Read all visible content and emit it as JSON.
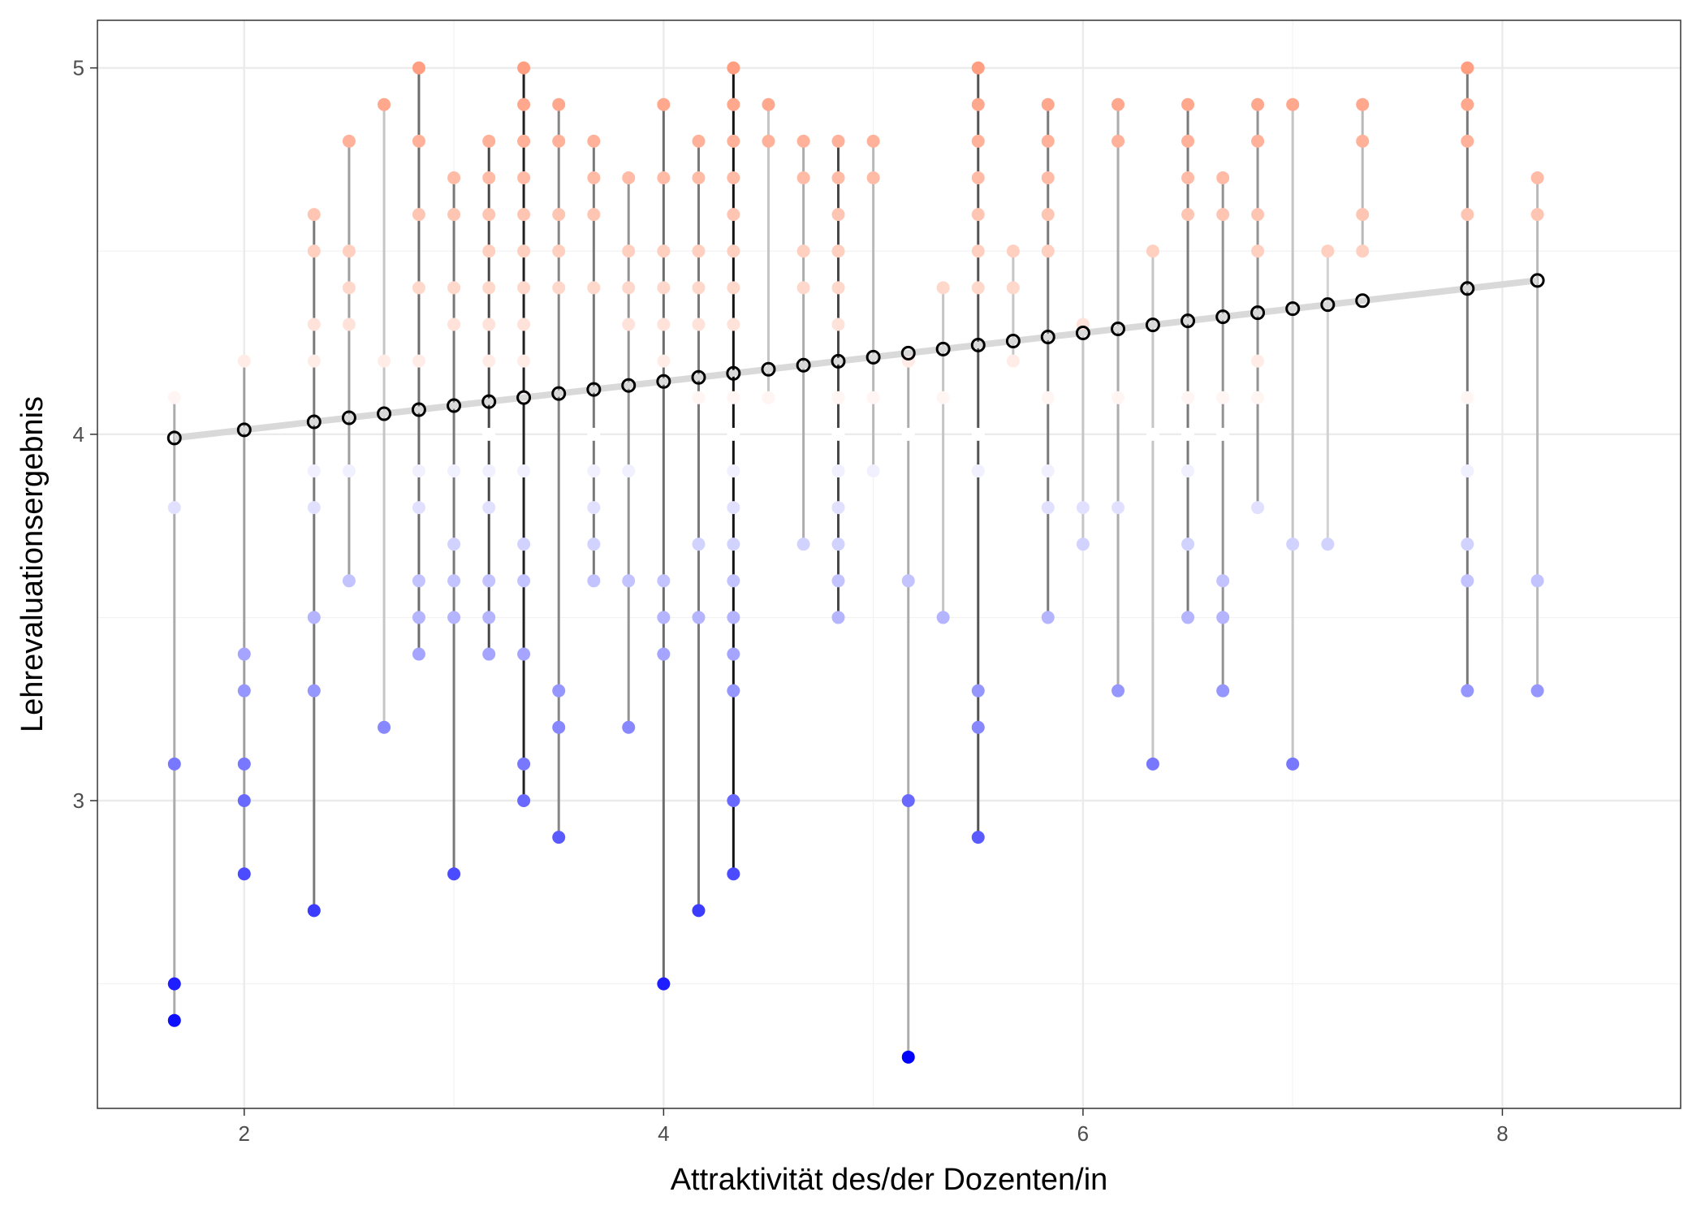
{
  "chart_data": {
    "type": "scatter",
    "title": "",
    "xlabel": "Attraktivität des/der Dozenten/in",
    "ylabel": "Lehrevaluationsergebnis",
    "xlim": [
      1.3,
      8.85
    ],
    "ylim": [
      2.16,
      5.13
    ],
    "x_ticks": [
      2,
      4,
      6,
      8
    ],
    "y_ticks": [
      3,
      4,
      5
    ],
    "grid": true,
    "legend": "none",
    "colors": {
      "high": "#FF9E80",
      "mid": "#FFFFFF",
      "low": "#0000FF",
      "midpoint": 4.0,
      "fitted_line": "#D9D9D9",
      "mean_point": "#000000"
    },
    "regression": {
      "x": [
        1.667,
        8.167
      ],
      "y": [
        3.99,
        4.42
      ]
    },
    "groups": [
      {
        "x": 1.667,
        "values": [
          4.1,
          3.8,
          3.1,
          2.5,
          2.4
        ]
      },
      {
        "x": 2.0,
        "values": [
          4.2,
          3.4,
          3.3,
          3.1,
          3.0,
          2.8
        ]
      },
      {
        "x": 2.333,
        "values": [
          4.6,
          4.5,
          4.3,
          4.2,
          3.9,
          3.8,
          3.5,
          3.3,
          2.7
        ]
      },
      {
        "x": 2.5,
        "values": [
          4.8,
          4.5,
          4.4,
          4.3,
          3.9,
          3.6
        ]
      },
      {
        "x": 2.667,
        "values": [
          4.9,
          4.2,
          3.2
        ]
      },
      {
        "x": 2.833,
        "values": [
          5.0,
          4.8,
          4.6,
          4.4,
          4.2,
          3.9,
          3.8,
          3.6,
          3.5,
          3.4
        ]
      },
      {
        "x": 3.0,
        "values": [
          4.7,
          4.6,
          4.4,
          4.3,
          3.9,
          3.7,
          3.6,
          3.5,
          2.8
        ]
      },
      {
        "x": 3.167,
        "values": [
          4.8,
          4.7,
          4.6,
          4.5,
          4.4,
          4.3,
          4.2,
          4.0,
          3.9,
          3.8,
          3.6,
          3.5,
          3.4
        ]
      },
      {
        "x": 3.333,
        "values": [
          5.0,
          4.9,
          4.8,
          4.7,
          4.6,
          4.5,
          4.4,
          4.3,
          4.2,
          4.1,
          3.9,
          3.7,
          3.6,
          3.4,
          3.1,
          3.0
        ]
      },
      {
        "x": 3.5,
        "values": [
          4.9,
          4.8,
          4.6,
          4.5,
          4.4,
          3.3,
          3.2,
          2.9
        ]
      },
      {
        "x": 3.667,
        "values": [
          4.8,
          4.7,
          4.6,
          4.4,
          4.0,
          3.9,
          3.8,
          3.7,
          3.6
        ]
      },
      {
        "x": 3.833,
        "values": [
          4.7,
          4.5,
          4.4,
          4.3,
          3.9,
          3.6,
          3.2
        ]
      },
      {
        "x": 4.0,
        "values": [
          4.9,
          4.7,
          4.5,
          4.4,
          4.3,
          4.2,
          3.6,
          3.5,
          3.4,
          2.5
        ]
      },
      {
        "x": 4.167,
        "values": [
          4.8,
          4.7,
          4.5,
          4.4,
          4.3,
          4.1,
          3.7,
          3.5,
          2.7
        ]
      },
      {
        "x": 4.333,
        "values": [
          5.0,
          4.9,
          4.8,
          4.7,
          4.6,
          4.5,
          4.4,
          4.3,
          4.1,
          4.0,
          3.9,
          3.8,
          3.7,
          3.6,
          3.5,
          3.4,
          3.3,
          3.0,
          2.8
        ]
      },
      {
        "x": 4.5,
        "values": [
          4.9,
          4.8,
          4.1
        ]
      },
      {
        "x": 4.667,
        "values": [
          4.8,
          4.7,
          4.5,
          4.4,
          3.7
        ]
      },
      {
        "x": 4.833,
        "values": [
          4.8,
          4.7,
          4.6,
          4.5,
          4.4,
          4.3,
          4.1,
          4.0,
          3.9,
          3.8,
          3.7,
          3.6,
          3.5
        ]
      },
      {
        "x": 5.0,
        "values": [
          4.8,
          4.7,
          4.1,
          3.9
        ]
      },
      {
        "x": 5.167,
        "values": [
          4.2,
          4.0,
          3.6,
          3.0,
          2.3
        ]
      },
      {
        "x": 5.333,
        "values": [
          4.4,
          4.1,
          3.5
        ]
      },
      {
        "x": 5.5,
        "values": [
          5.0,
          4.9,
          4.8,
          4.7,
          4.6,
          4.5,
          4.4,
          4.0,
          3.9,
          3.3,
          3.2,
          2.9
        ]
      },
      {
        "x": 5.667,
        "values": [
          4.5,
          4.4,
          4.2
        ]
      },
      {
        "x": 5.833,
        "values": [
          4.9,
          4.8,
          4.7,
          4.6,
          4.5,
          4.1,
          3.9,
          3.8,
          3.5
        ]
      },
      {
        "x": 6.0,
        "values": [
          4.3,
          3.8,
          3.7
        ]
      },
      {
        "x": 6.167,
        "values": [
          4.9,
          4.8,
          4.1,
          3.8,
          3.3
        ]
      },
      {
        "x": 6.333,
        "values": [
          4.5,
          4.0,
          3.1
        ]
      },
      {
        "x": 6.5,
        "values": [
          4.9,
          4.8,
          4.7,
          4.6,
          4.1,
          4.0,
          3.9,
          3.7,
          3.5
        ]
      },
      {
        "x": 6.667,
        "values": [
          4.7,
          4.6,
          4.1,
          4.0,
          3.6,
          3.5,
          3.3
        ]
      },
      {
        "x": 6.833,
        "values": [
          4.9,
          4.8,
          4.6,
          4.5,
          4.2,
          4.1,
          3.8
        ]
      },
      {
        "x": 7.0,
        "values": [
          4.9,
          3.7,
          3.1
        ]
      },
      {
        "x": 7.167,
        "values": [
          4.5,
          3.7
        ]
      },
      {
        "x": 7.333,
        "values": [
          4.9,
          4.8,
          4.6,
          4.5
        ]
      },
      {
        "x": 7.833,
        "values": [
          5.0,
          4.9,
          4.8,
          4.6,
          4.1,
          3.9,
          3.7,
          3.6,
          3.3
        ]
      },
      {
        "x": 8.167,
        "values": [
          4.7,
          4.6,
          3.6,
          3.3
        ]
      }
    ]
  }
}
